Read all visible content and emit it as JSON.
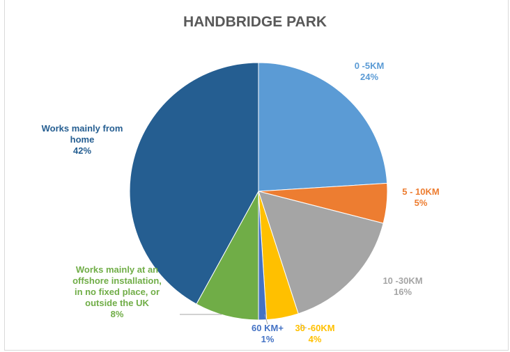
{
  "chart_data": {
    "type": "pie",
    "title": "HANDBRIDGE PARK",
    "slices": [
      {
        "label": [
          "0 -5KM"
        ],
        "pct_label": "24%",
        "value": 24,
        "color": "#5b9bd5"
      },
      {
        "label": [
          "5 - 10KM"
        ],
        "pct_label": "5%",
        "value": 5,
        "color": "#ed7d31"
      },
      {
        "label": [
          "10 -30KM"
        ],
        "pct_label": "16%",
        "value": 16,
        "color": "#a5a5a5"
      },
      {
        "label": [
          "30 -60KM"
        ],
        "pct_label": "4%",
        "value": 4,
        "color": "#ffc000"
      },
      {
        "label": [
          "60 KM+"
        ],
        "pct_label": "1%",
        "value": 1,
        "color": "#4472c4"
      },
      {
        "label": [
          "Works mainly at an",
          "offshore installation,",
          "in no fixed place, or",
          "outside the UK"
        ],
        "pct_label": "8%",
        "value": 8,
        "color": "#70ad47"
      },
      {
        "label": [
          "Works mainly from",
          "home"
        ],
        "pct_label": "42%",
        "value": 42,
        "color": "#255e91"
      }
    ]
  }
}
